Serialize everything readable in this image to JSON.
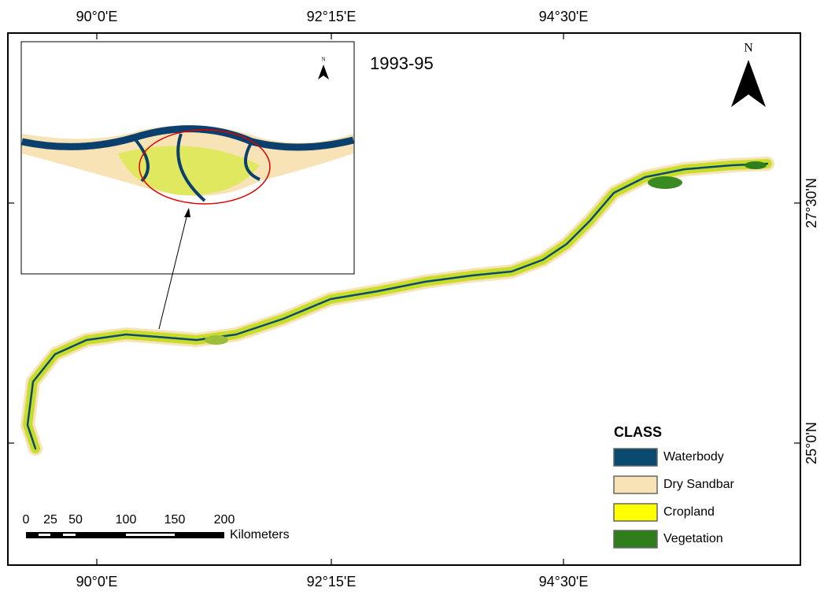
{
  "map": {
    "graticule": {
      "top": [
        "90°0'E",
        "92°15'E",
        "94°30'E"
      ],
      "bottom": [
        "90°0'E",
        "92°15'E",
        "94°30'E"
      ],
      "right": [
        "27°30'N",
        "25°0'N"
      ]
    },
    "inset": {
      "period": "1993-95",
      "north": "N"
    },
    "north": "N",
    "legend": {
      "title": "CLASS",
      "items": [
        {
          "name": "Waterbody",
          "color": "#0b4a6f"
        },
        {
          "name": "Dry Sandbar",
          "color": "#f7e3b5"
        },
        {
          "name": "Cropland",
          "color": "#ffff00"
        },
        {
          "name": "Vegetation",
          "color": "#2f7d1b"
        }
      ]
    },
    "scale": {
      "labels": [
        "0",
        "25",
        "50",
        "100",
        "150",
        "200"
      ],
      "unit": "Kilometers"
    }
  }
}
